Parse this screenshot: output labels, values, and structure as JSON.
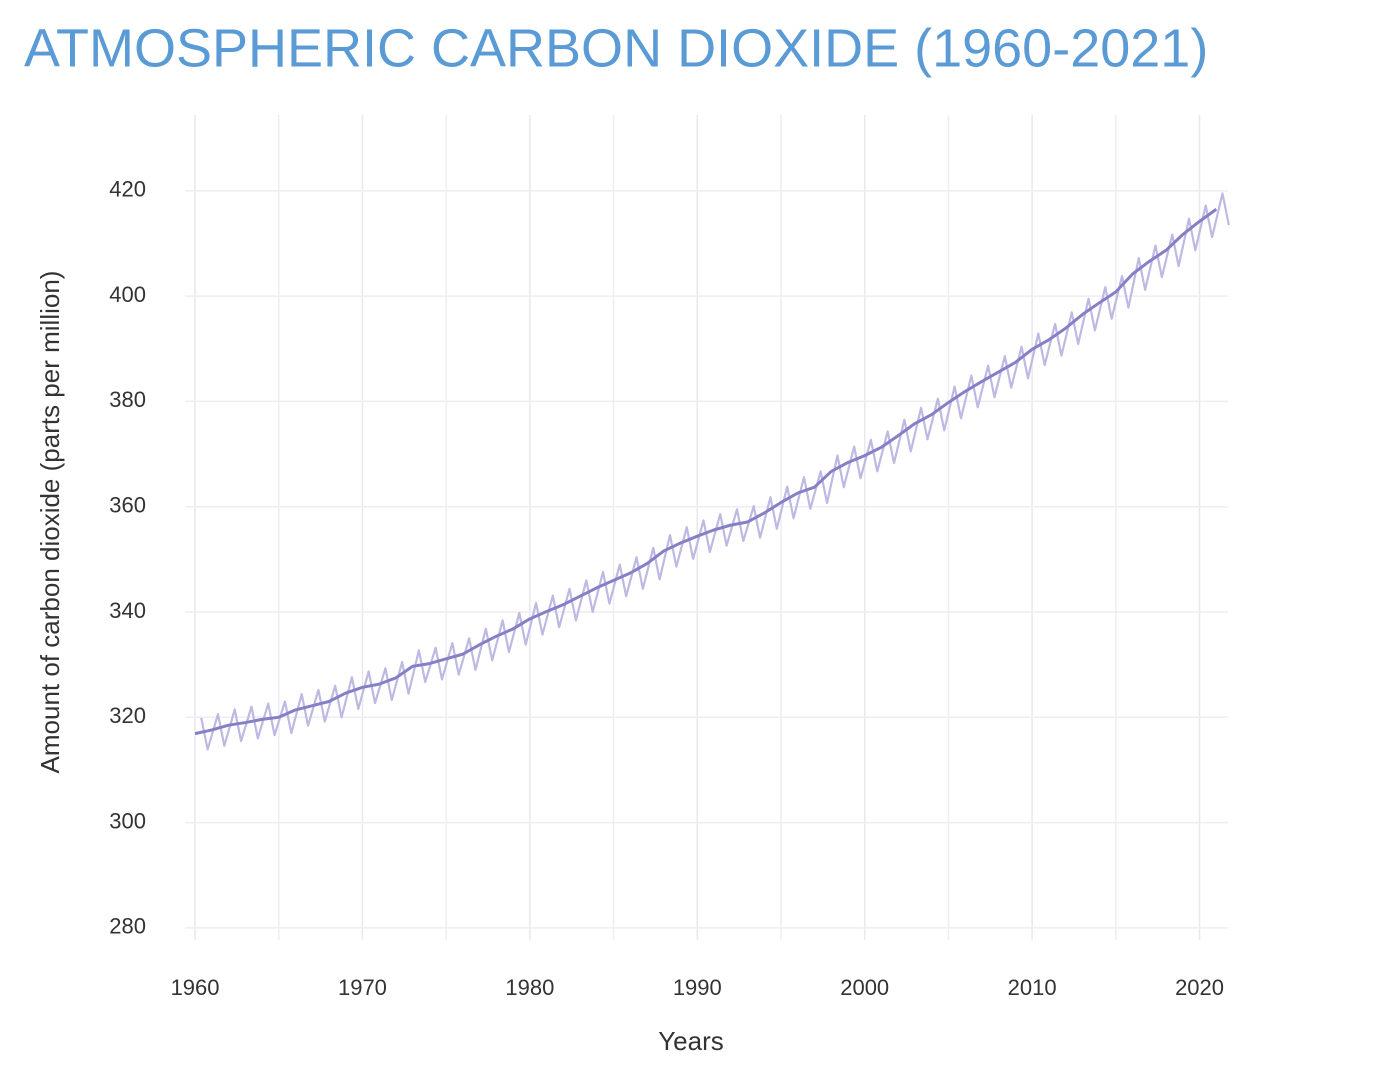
{
  "chart_data": {
    "type": "line",
    "title": "ATMOSPHERIC CARBON DIOXIDE (1960-2021)",
    "xlabel": "Years",
    "ylabel": "Amount of carbon dioxide (parts per million)",
    "xlim": [
      1959.4,
      2021.7
    ],
    "xticks": [
      1960,
      1970,
      1980,
      1990,
      2000,
      2010,
      2020
    ],
    "x_minor_ticks": [
      1965,
      1975,
      1985,
      1995,
      2005,
      2015
    ],
    "ylim": [
      277.7,
      434.4
    ],
    "yticks": [
      280,
      300,
      320,
      340,
      360,
      380,
      400,
      420
    ],
    "grid": true,
    "series": [
      {
        "color": "#bdb9e3",
        "x": [
          1960.37,
          1960.75,
          1961.37,
          1961.75,
          1962.37,
          1962.75,
          1963.37,
          1963.75,
          1964.37,
          1964.75,
          1965.37,
          1965.75,
          1966.37,
          1966.75,
          1967.37,
          1967.75,
          1968.37,
          1968.75,
          1969.37,
          1969.75,
          1970.37,
          1970.75,
          1971.37,
          1971.75,
          1972.37,
          1972.75,
          1973.37,
          1973.75,
          1974.37,
          1974.75,
          1975.37,
          1975.75,
          1976.37,
          1976.75,
          1977.37,
          1977.75,
          1978.37,
          1978.75,
          1979.37,
          1979.75,
          1980.37,
          1980.75,
          1981.37,
          1981.75,
          1982.37,
          1982.75,
          1983.37,
          1983.75,
          1984.37,
          1984.75,
          1985.37,
          1985.75,
          1986.37,
          1986.75,
          1987.37,
          1987.75,
          1988.37,
          1988.75,
          1989.37,
          1989.75,
          1990.37,
          1990.75,
          1991.37,
          1991.75,
          1992.37,
          1992.75,
          1993.37,
          1993.75,
          1994.37,
          1994.75,
          1995.37,
          1995.75,
          1996.37,
          1996.75,
          1997.37,
          1997.75,
          1998.37,
          1998.75,
          1999.37,
          1999.75,
          2000.37,
          2000.75,
          2001.37,
          2001.75,
          2002.37,
          2002.75,
          2003.37,
          2003.75,
          2004.37,
          2004.75,
          2005.37,
          2005.75,
          2006.37,
          2006.75,
          2007.37,
          2007.75,
          2008.37,
          2008.75,
          2009.37,
          2009.75,
          2010.37,
          2010.75,
          2011.37,
          2011.75,
          2012.37,
          2012.75,
          2013.37,
          2013.75,
          2014.37,
          2014.75,
          2015.37,
          2015.75,
          2016.37,
          2016.75,
          2017.37,
          2017.75,
          2018.37,
          2018.75,
          2019.37,
          2019.75,
          2020.37,
          2020.75,
          2021.37,
          2021.75
        ],
        "values": [
          319.9,
          313.9,
          320.6,
          314.6,
          321.5,
          315.5,
          322.0,
          316.0,
          322.6,
          316.6,
          323.0,
          317.0,
          324.4,
          318.4,
          325.2,
          319.2,
          326.0,
          320.0,
          327.6,
          321.6,
          328.7,
          322.7,
          329.3,
          323.3,
          330.5,
          324.5,
          332.7,
          326.7,
          333.2,
          327.2,
          334.1,
          328.1,
          335.0,
          329.0,
          336.8,
          330.8,
          338.4,
          332.4,
          339.8,
          333.8,
          341.7,
          335.7,
          343.1,
          337.1,
          344.4,
          338.4,
          346.0,
          340.0,
          347.6,
          341.6,
          349.0,
          343.0,
          350.4,
          344.4,
          352.2,
          346.2,
          354.6,
          348.6,
          356.1,
          350.1,
          357.4,
          351.4,
          358.6,
          352.6,
          359.5,
          353.5,
          360.1,
          354.1,
          361.8,
          355.8,
          363.8,
          357.8,
          365.6,
          359.6,
          366.7,
          360.7,
          369.7,
          363.7,
          371.4,
          365.4,
          372.7,
          366.7,
          374.3,
          368.3,
          376.5,
          370.5,
          378.8,
          372.8,
          380.5,
          374.5,
          382.8,
          376.8,
          384.9,
          378.9,
          386.8,
          380.8,
          388.6,
          382.6,
          390.4,
          384.4,
          392.9,
          386.9,
          394.7,
          388.7,
          396.9,
          390.9,
          399.5,
          393.5,
          401.7,
          395.7,
          403.8,
          397.8,
          407.2,
          401.2,
          409.6,
          403.6,
          411.7,
          405.7,
          414.7,
          408.7,
          417.2,
          411.2,
          419.5,
          413.5
        ]
      },
      {
        "color": "#8580c6",
        "x": [
          1960,
          1961,
          1962,
          1963,
          1964,
          1965,
          1966,
          1967,
          1968,
          1969,
          1970,
          1971,
          1972,
          1973,
          1974,
          1975,
          1976,
          1977,
          1978,
          1979,
          1980,
          1981,
          1982,
          1983,
          1984,
          1985,
          1986,
          1987,
          1988,
          1989,
          1990,
          1991,
          1992,
          1993,
          1994,
          1995,
          1996,
          1997,
          1998,
          1999,
          2000,
          2001,
          2002,
          2003,
          2004,
          2005,
          2006,
          2007,
          2008,
          2009,
          2010,
          2011,
          2012,
          2013,
          2014,
          2015,
          2016,
          2017,
          2018,
          2019,
          2020,
          2021
        ],
        "values": [
          316.9,
          317.6,
          318.5,
          319.0,
          319.6,
          320.0,
          321.4,
          322.2,
          323.0,
          324.6,
          325.7,
          326.3,
          327.5,
          329.7,
          330.2,
          331.1,
          332.0,
          333.8,
          335.4,
          336.8,
          338.7,
          340.1,
          341.4,
          343.0,
          344.6,
          346.0,
          347.4,
          349.2,
          351.6,
          353.1,
          354.4,
          355.6,
          356.5,
          357.1,
          358.8,
          360.8,
          362.6,
          363.7,
          366.7,
          368.4,
          369.7,
          371.3,
          373.5,
          375.8,
          377.5,
          379.8,
          381.9,
          383.8,
          385.6,
          387.4,
          389.9,
          391.7,
          393.9,
          396.5,
          398.7,
          400.8,
          404.2,
          406.6,
          408.7,
          411.7,
          414.2,
          416.5
        ]
      }
    ]
  }
}
